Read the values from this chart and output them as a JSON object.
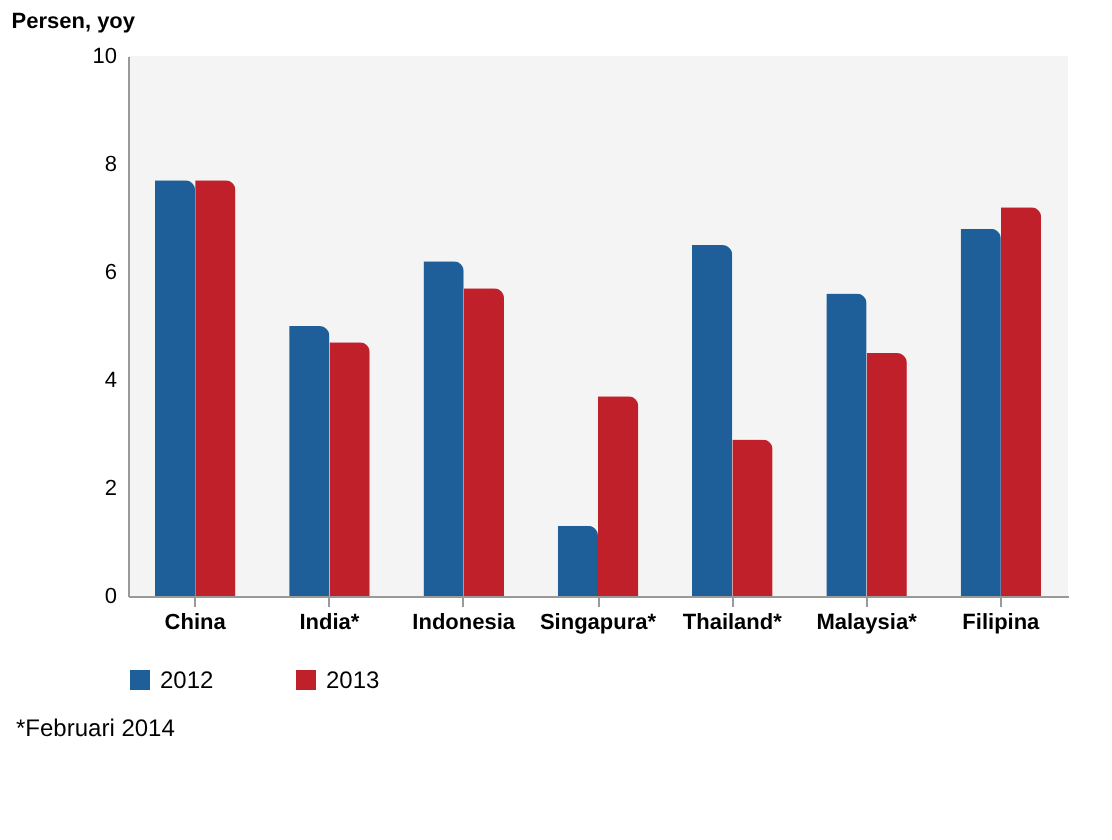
{
  "chart_data": {
    "type": "bar",
    "ylabel": "Persen, yoy",
    "categories": [
      "China",
      "India*",
      "Indonesia",
      "Singapura*",
      "Thailand*",
      "Malaysia*",
      "Filipina"
    ],
    "series": [
      {
        "name": "2012",
        "color": "#1f5f99",
        "values": [
          7.7,
          5.0,
          6.2,
          1.3,
          6.5,
          5.6,
          6.8
        ]
      },
      {
        "name": "2013",
        "color": "#c0202a",
        "values": [
          7.7,
          4.7,
          5.7,
          3.7,
          2.9,
          4.5,
          7.2
        ]
      }
    ],
    "ylim": [
      0,
      10
    ],
    "yticks": [
      0,
      2,
      4,
      6,
      8,
      10
    ],
    "legend": "bottom",
    "annotations": [
      "*Februari 2014"
    ]
  }
}
